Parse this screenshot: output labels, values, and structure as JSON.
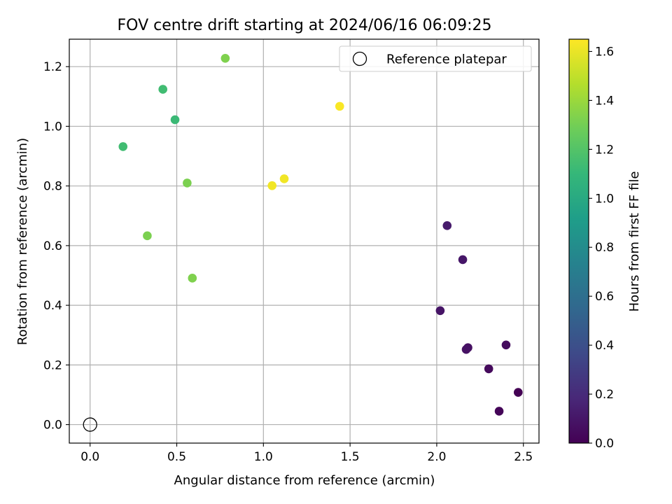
{
  "chart_data": {
    "type": "scatter",
    "title": "FOV centre drift starting at 2024/06/16 06:09:25",
    "xlabel": "Angular distance from reference (arcmin)",
    "ylabel": "Rotation from reference (arcmin)",
    "xlim": [
      -0.12,
      2.59
    ],
    "ylim": [
      -0.062,
      1.292
    ],
    "xticks": [
      0.0,
      0.5,
      1.0,
      1.5,
      2.0,
      2.5
    ],
    "xtick_labels": [
      "0.0",
      "0.5",
      "1.0",
      "1.5",
      "2.0",
      "2.5"
    ],
    "yticks": [
      0.0,
      0.2,
      0.4,
      0.6,
      0.8,
      1.0,
      1.2
    ],
    "ytick_labels": [
      "0.0",
      "0.2",
      "0.4",
      "0.6",
      "0.8",
      "1.0",
      "1.2"
    ],
    "grid": true,
    "legend": {
      "placement": "upper right",
      "entries": [
        {
          "label": "Reference platepar",
          "marker": "open-circle"
        }
      ]
    },
    "reference_point": {
      "x": 0.0,
      "y": 0.0
    },
    "colorbar": {
      "label": "Hours from first FF file",
      "colormap": "viridis",
      "range": [
        0.0,
        1.65
      ],
      "ticks": [
        0.0,
        0.2,
        0.4,
        0.6,
        0.8,
        1.0,
        1.2,
        1.4,
        1.6
      ],
      "tick_labels": [
        "0.0",
        "0.2",
        "0.4",
        "0.6",
        "0.8",
        "1.0",
        "1.2",
        "1.4",
        "1.6"
      ]
    },
    "points": [
      {
        "x": 2.47,
        "y": 0.108,
        "c": 0.0
      },
      {
        "x": 2.36,
        "y": 0.045,
        "c": 0.02
      },
      {
        "x": 2.3,
        "y": 0.187,
        "c": 0.04
      },
      {
        "x": 2.4,
        "y": 0.267,
        "c": 0.05
      },
      {
        "x": 2.18,
        "y": 0.258,
        "c": 0.07
      },
      {
        "x": 2.17,
        "y": 0.252,
        "c": 0.08
      },
      {
        "x": 2.02,
        "y": 0.382,
        "c": 0.09
      },
      {
        "x": 2.15,
        "y": 0.553,
        "c": 0.1
      },
      {
        "x": 2.06,
        "y": 0.667,
        "c": 0.12
      },
      {
        "x": 0.19,
        "y": 0.932,
        "c": 1.14
      },
      {
        "x": 0.42,
        "y": 1.124,
        "c": 1.14
      },
      {
        "x": 0.49,
        "y": 1.022,
        "c": 1.12
      },
      {
        "x": 0.33,
        "y": 0.633,
        "c": 1.32
      },
      {
        "x": 0.56,
        "y": 0.81,
        "c": 1.32
      },
      {
        "x": 0.59,
        "y": 0.491,
        "c": 1.33
      },
      {
        "x": 0.78,
        "y": 1.228,
        "c": 1.33
      },
      {
        "x": 1.05,
        "y": 0.801,
        "c": 1.62
      },
      {
        "x": 1.12,
        "y": 0.824,
        "c": 1.62
      },
      {
        "x": 1.44,
        "y": 1.067,
        "c": 1.64
      }
    ]
  }
}
